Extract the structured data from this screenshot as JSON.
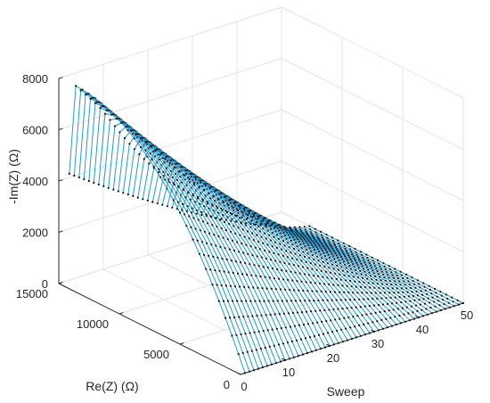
{
  "chart_data": {
    "type": "line",
    "view": "3d-surface-of-nyquist-curves",
    "title": "",
    "xlabel": "Sweep",
    "ylabel": "Re(Z) (Ω)",
    "zlabel": "-Im(Z) (Ω)",
    "x_ticks": [
      "0",
      "10",
      "20",
      "30",
      "40",
      "50"
    ],
    "y_ticks": [
      "0",
      "5000",
      "10000",
      "15000"
    ],
    "z_ticks": [
      "0",
      "2000",
      "4000",
      "6000",
      "8000"
    ],
    "xlim": [
      0,
      50
    ],
    "ylim": [
      0,
      15000
    ],
    "zlim": [
      0,
      8000
    ],
    "grid": true,
    "line_color": "#1f9bd7",
    "marker_color": "#111111",
    "sweeps": 50,
    "points_per_sweep": 28,
    "curve_model": {
      "real_axis_max": [
        14500,
        12700
      ],
      "imag_peak_start": 7900,
      "imag_peak_end": 0,
      "peak_location_start": 14200,
      "peak_location_end": 9600,
      "note": "each sweep is a Nyquist-like arc rising from Re=0 to a peak near the Re max"
    }
  }
}
